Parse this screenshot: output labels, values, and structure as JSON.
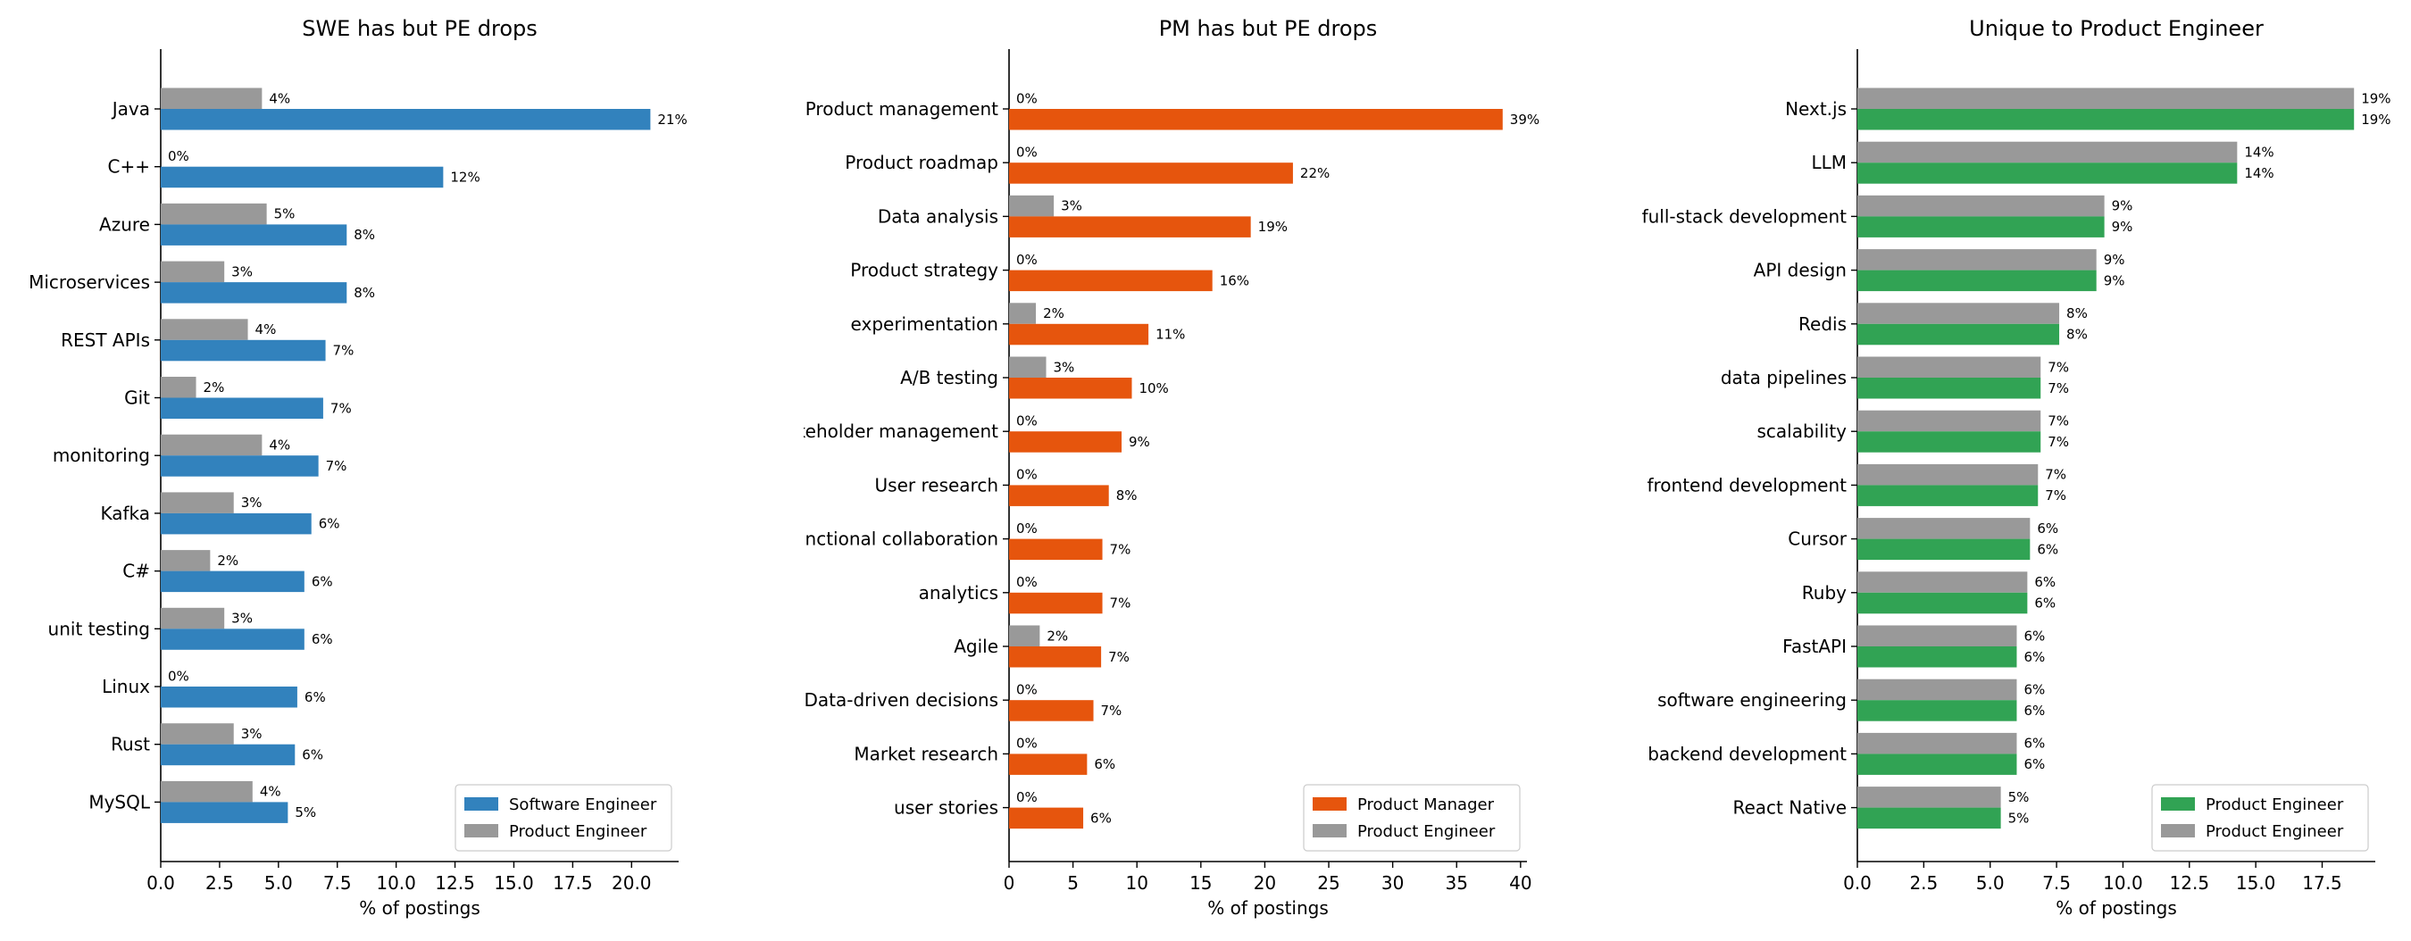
{
  "chart_data": [
    {
      "type": "bar",
      "orientation": "horizontal",
      "title": "SWE has but PE drops",
      "xlabel": "% of postings",
      "ylabel": "",
      "xlim": [
        0,
        22
      ],
      "xticks": [
        0,
        2.5,
        5,
        7.5,
        10,
        12.5,
        15,
        17.5,
        20
      ],
      "xtick_labels": [
        "0.0",
        "2.5",
        "5.0",
        "7.5",
        "10.0",
        "12.5",
        "15.0",
        "17.5",
        "20.0"
      ],
      "legend_position": "lower right",
      "categories": [
        "Java",
        "C++",
        "Azure",
        "Microservices",
        "REST APIs",
        "Git",
        "monitoring",
        "Kafka",
        "C#",
        "unit testing",
        "Linux",
        "Rust",
        "MySQL"
      ],
      "series": [
        {
          "name": "Software Engineer",
          "color": "#3282bd",
          "values": [
            20.8,
            12.0,
            7.9,
            7.9,
            7.0,
            6.9,
            6.7,
            6.4,
            6.1,
            6.1,
            5.8,
            5.7,
            5.4
          ],
          "labels": [
            "21%",
            "12%",
            "8%",
            "8%",
            "7%",
            "7%",
            "7%",
            "6%",
            "6%",
            "6%",
            "6%",
            "6%",
            "5%"
          ]
        },
        {
          "name": "Product Engineer",
          "color": "#999999",
          "values": [
            4.3,
            0.0,
            4.5,
            2.7,
            3.7,
            1.5,
            4.3,
            3.1,
            2.1,
            2.7,
            0.0,
            3.1,
            3.9
          ],
          "labels": [
            "4%",
            "0%",
            "5%",
            "3%",
            "4%",
            "2%",
            "4%",
            "3%",
            "2%",
            "3%",
            "0%",
            "3%",
            "4%"
          ]
        }
      ]
    },
    {
      "type": "bar",
      "orientation": "horizontal",
      "title": "PM has but PE drops",
      "xlabel": "% of postings",
      "ylabel": "",
      "xlim": [
        0,
        40.5
      ],
      "xticks": [
        0,
        5,
        10,
        15,
        20,
        25,
        30,
        35,
        40
      ],
      "xtick_labels": [
        "0",
        "5",
        "10",
        "15",
        "20",
        "25",
        "30",
        "35",
        "40"
      ],
      "legend_position": "lower right",
      "categories": [
        "Product management",
        "Product roadmap",
        "Data analysis",
        "Product strategy",
        "experimentation",
        "A/B testing",
        "Stakeholder management",
        "User research",
        "Cross-functional collaboration",
        "analytics",
        "Agile",
        "Data-driven decisions",
        "Market research",
        "user stories"
      ],
      "series": [
        {
          "name": "Product Manager",
          "color": "#e6550d",
          "values": [
            38.6,
            22.2,
            18.9,
            15.9,
            10.9,
            9.6,
            8.8,
            7.8,
            7.3,
            7.3,
            7.2,
            6.6,
            6.1,
            5.8
          ],
          "labels": [
            "39%",
            "22%",
            "19%",
            "16%",
            "11%",
            "10%",
            "9%",
            "8%",
            "7%",
            "7%",
            "7%",
            "7%",
            "6%",
            "6%"
          ]
        },
        {
          "name": "Product Engineer",
          "color": "#999999",
          "values": [
            0,
            0,
            3.5,
            0,
            2.1,
            2.9,
            0,
            0,
            0,
            0,
            2.4,
            0,
            0,
            0
          ],
          "labels": [
            "0%",
            "0%",
            "3%",
            "0%",
            "2%",
            "3%",
            "0%",
            "0%",
            "0%",
            "0%",
            "2%",
            "0%",
            "0%",
            "0%"
          ]
        }
      ]
    },
    {
      "type": "bar",
      "orientation": "horizontal",
      "title": "Unique to Product Engineer",
      "xlabel": "% of postings",
      "ylabel": "",
      "xlim": [
        0,
        19.5
      ],
      "xticks": [
        0,
        2.5,
        5,
        7.5,
        10,
        12.5,
        15,
        17.5
      ],
      "xtick_labels": [
        "0.0",
        "2.5",
        "5.0",
        "7.5",
        "10.0",
        "12.5",
        "15.0",
        "17.5"
      ],
      "legend_position": "lower right",
      "categories": [
        "Next.js",
        "LLM",
        "full-stack development",
        "API design",
        "Redis",
        "data pipelines",
        "scalability",
        "frontend development",
        "Cursor",
        "Ruby",
        "FastAPI",
        "software engineering",
        "backend development",
        "React Native"
      ],
      "series": [
        {
          "name": "Product Engineer",
          "color": "#31a354",
          "values": [
            18.7,
            14.3,
            9.3,
            9.0,
            7.6,
            6.9,
            6.9,
            6.8,
            6.5,
            6.4,
            6.0,
            6.0,
            6.0,
            5.4
          ],
          "labels": [
            "19%",
            "14%",
            "9%",
            "9%",
            "8%",
            "7%",
            "7%",
            "7%",
            "6%",
            "6%",
            "6%",
            "6%",
            "6%",
            "5%"
          ]
        },
        {
          "name": "Product Engineer",
          "color": "#999999",
          "values": [
            18.7,
            14.3,
            9.3,
            9.0,
            7.6,
            6.9,
            6.9,
            6.8,
            6.5,
            6.4,
            6.0,
            6.0,
            6.0,
            5.4
          ],
          "labels": [
            "19%",
            "14%",
            "9%",
            "9%",
            "8%",
            "7%",
            "7%",
            "7%",
            "6%",
            "6%",
            "6%",
            "6%",
            "6%",
            "5%"
          ]
        }
      ]
    }
  ]
}
